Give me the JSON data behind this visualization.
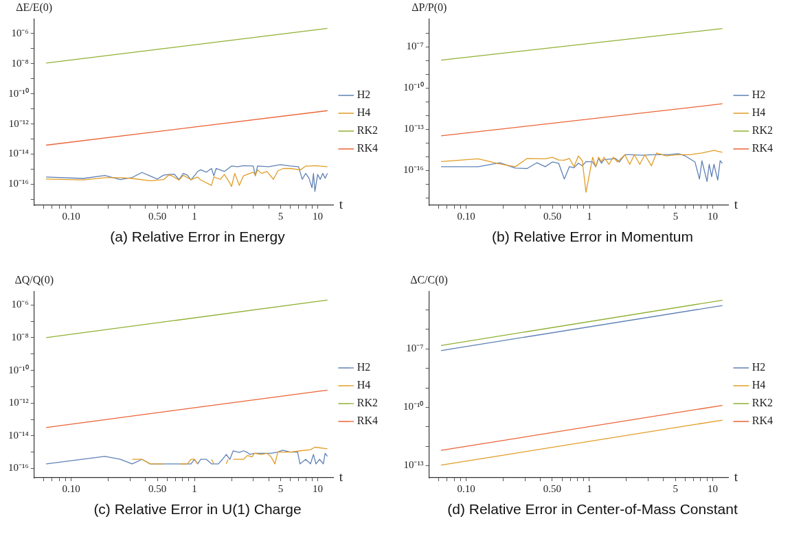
{
  "chart_data": [
    {
      "type": "line",
      "title": "(a) Relative Error in Energy",
      "xlabel": "t",
      "ylabel": "ΔE/E(0)",
      "log": "xy",
      "grid": false,
      "legend": "right",
      "marker": "none",
      "xlim": [
        0.05,
        13.5
      ],
      "xticks": [
        {
          "value": 0.06,
          "label": null
        },
        {
          "value": 0.07,
          "label": null
        },
        {
          "value": 0.08,
          "label": null
        },
        {
          "value": 0.09,
          "label": null
        },
        {
          "value": 0.1,
          "label": "0.10"
        },
        {
          "value": 0.2,
          "label": null
        },
        {
          "value": 0.3,
          "label": null
        },
        {
          "value": 0.4,
          "label": null
        },
        {
          "value": 0.5,
          "label": "0.50"
        },
        {
          "value": 0.6,
          "label": null
        },
        {
          "value": 0.7,
          "label": null
        },
        {
          "value": 0.8,
          "label": null
        },
        {
          "value": 0.9,
          "label": null
        },
        1,
        {
          "value": 2,
          "label": null
        },
        {
          "value": 3,
          "label": null
        },
        {
          "value": 4,
          "label": null
        },
        5,
        {
          "value": 6,
          "label": null
        },
        {
          "value": 7,
          "label": null
        },
        {
          "value": 8,
          "label": null
        },
        {
          "value": 9,
          "label": null
        },
        10
      ],
      "ylim": [
        4e-18,
        9e-06
      ],
      "yticks": [
        {
          "value": 1e-17,
          "label": null
        },
        {
          "value": 1e-16,
          "label": "10⁻¹⁶"
        },
        {
          "value": 1e-15,
          "label": null
        },
        {
          "value": 1e-14,
          "label": "10⁻¹⁴"
        },
        {
          "value": 1e-13,
          "label": null
        },
        {
          "value": 1e-12,
          "label": "10⁻¹²"
        },
        {
          "value": 1e-11,
          "label": null
        },
        {
          "value": 1e-10,
          "label": "10⁻¹⁰"
        },
        {
          "value": 1e-09,
          "label": null
        },
        {
          "value": 1e-08,
          "label": "10⁻⁸"
        },
        {
          "value": 1e-07,
          "label": null
        },
        {
          "value": 1e-06,
          "label": "10⁻⁶"
        }
      ],
      "series": [
        {
          "name": "H2",
          "color": "#5e81b5",
          "x": [
            0.0625,
            0.125,
            0.1875,
            0.25,
            0.3125,
            0.375,
            0.5,
            0.5625,
            0.625,
            0.6875,
            0.75,
            0.8125,
            0.875,
            0.9375,
            1.0625,
            1.125,
            1.25,
            1.375,
            1.4375,
            1.5,
            1.75,
            2,
            2.25,
            2.5,
            3,
            3.125,
            3.25,
            4,
            5,
            6,
            7,
            7.5,
            8,
            8.5,
            9,
            9.25,
            9.5,
            10,
            10.5,
            11,
            11.5,
            12
          ],
          "values": [
            3e-16,
            2.4e-16,
            3.8e-16,
            2e-16,
            2.8e-16,
            6e-16,
            2.2e-16,
            4e-16,
            4.4e-16,
            4.5e-16,
            2e-16,
            5.2e-16,
            4e-16,
            1.9e-16,
            7e-16,
            9e-16,
            6.3e-16,
            1.1e-15,
            3.6e-16,
            1.1e-15,
            7e-16,
            1.6e-15,
            1.45e-15,
            1.7e-15,
            1.6e-15,
            3.6e-16,
            1.6e-15,
            1.45e-15,
            2e-15,
            1.6e-15,
            1.45e-15,
            2.1e-16,
            5.2e-16,
            2.5e-16,
            5.8e-17,
            5.2e-16,
            3.3e-17,
            4.4e-16,
            2.1e-16,
            5.2e-16,
            2.5e-16,
            5.2e-16
          ]
        },
        {
          "name": "H4",
          "color": "#e19c24",
          "x": [
            0.0625,
            0.125,
            0.1875,
            0.25,
            0.3125,
            0.4375,
            0.5625,
            0.625,
            0.75,
            0.8125,
            0.9375,
            1.0625,
            1.125,
            1.375,
            1.4375,
            1.625,
            1.75,
            1.9375,
            2,
            2.125,
            2.3125,
            2.5,
            3,
            3.125,
            3.25,
            3.5,
            3.875,
            4.375,
            4.75,
            5.25,
            6,
            7.25,
            8,
            8.75,
            9.5,
            12
          ],
          "values": [
            2.2e-16,
            1.9e-16,
            2.7e-16,
            2.7e-16,
            2.4e-16,
            1.7e-16,
            2e-16,
            4.4e-16,
            1.9e-16,
            3.9e-16,
            2e-16,
            3e-16,
            1.9e-16,
            8.3e-17,
            3e-16,
            2.1e-16,
            4.4e-16,
            1.2e-16,
            7e-17,
            5.2e-16,
            8.3e-17,
            3.6e-16,
            6.3e-16,
            3.9e-16,
            9e-16,
            5.2e-16,
            7e-16,
            2.1e-16,
            7.6e-16,
            1.1e-15,
            1.1e-15,
            9e-16,
            1.6e-15,
            1.6e-15,
            1.7e-15,
            1.45e-15
          ]
        },
        {
          "name": "RK2",
          "color": "#8fb032",
          "x": [
            0.0625,
            12
          ],
          "values": [
            1.1e-08,
            2.2e-06
          ]
        },
        {
          "name": "RK4",
          "color": "#eb6235",
          "x": [
            0.0625,
            12
          ],
          "values": [
            3.9e-14,
            7.6e-12
          ]
        }
      ]
    },
    {
      "type": "line",
      "title": "(b) Relative Error in Momentum",
      "xlabel": "t",
      "ylabel": "ΔP/P(0)",
      "log": "xy",
      "grid": false,
      "legend": "right",
      "marker": "none",
      "xlim": [
        0.05,
        13.5
      ],
      "xticks": [
        {
          "value": 0.06,
          "label": null
        },
        {
          "value": 0.07,
          "label": null
        },
        {
          "value": 0.08,
          "label": null
        },
        {
          "value": 0.09,
          "label": null
        },
        {
          "value": 0.1,
          "label": "0.10"
        },
        {
          "value": 0.2,
          "label": null
        },
        {
          "value": 0.3,
          "label": null
        },
        {
          "value": 0.4,
          "label": null
        },
        {
          "value": 0.5,
          "label": "0.50"
        },
        {
          "value": 0.6,
          "label": null
        },
        {
          "value": 0.7,
          "label": null
        },
        {
          "value": 0.8,
          "label": null
        },
        {
          "value": 0.9,
          "label": null
        },
        1,
        {
          "value": 2,
          "label": null
        },
        {
          "value": 3,
          "label": null
        },
        {
          "value": 4,
          "label": null
        },
        5,
        {
          "value": 6,
          "label": null
        },
        {
          "value": 7,
          "label": null
        },
        {
          "value": 8,
          "label": null
        },
        {
          "value": 9,
          "label": null
        },
        10
      ],
      "ylim": [
        3e-19,
        1e-05
      ],
      "yticks": [
        {
          "value": 1e-18,
          "label": null
        },
        {
          "value": 1e-17,
          "label": null
        },
        {
          "value": 1e-16,
          "label": "10⁻¹⁶"
        },
        {
          "value": 1e-15,
          "label": null
        },
        {
          "value": 1e-14,
          "label": null
        },
        {
          "value": 1e-13,
          "label": "10⁻¹³"
        },
        {
          "value": 1e-12,
          "label": null
        },
        {
          "value": 1e-11,
          "label": null
        },
        {
          "value": 1e-10,
          "label": "10⁻¹⁰"
        },
        {
          "value": 1e-09,
          "label": null
        },
        {
          "value": 1e-08,
          "label": null
        },
        {
          "value": 1e-07,
          "label": "10⁻⁷"
        },
        {
          "value": 1e-06,
          "label": null
        }
      ],
      "series": [
        {
          "name": "H2",
          "color": "#5e81b5",
          "x": [
            0.0625,
            0.125,
            0.1875,
            0.25,
            0.3125,
            0.375,
            0.4375,
            0.5,
            0.5625,
            0.625,
            0.6875,
            0.75,
            0.8125,
            0.875,
            0.9375,
            1.0625,
            1.125,
            1.1875,
            1.25,
            1.3125,
            1.625,
            1.75,
            1.9375,
            2.125,
            2.6875,
            3.3125,
            4.375,
            5.25,
            6,
            7.1875,
            7.8125,
            8.1875,
            9,
            9.375,
            9.8125,
            10.25,
            11,
            11.5,
            12
          ],
          "values": [
            1.9e-16,
            1.9e-16,
            3.7e-16,
            1.5e-16,
            1.4e-16,
            3.7e-16,
            1.9e-16,
            4.2e-16,
            3.4e-16,
            2.4e-17,
            1.9e-16,
            1.6e-16,
            3.4e-16,
            2.2e-16,
            4.5e-16,
            4.2e-16,
            1.9e-16,
            7.6e-16,
            3.4e-16,
            6.2e-16,
            7.6e-16,
            4.2e-16,
            1.4e-15,
            1.4e-15,
            1.3e-15,
            1.4e-15,
            1.4e-15,
            1.7e-15,
            1.15e-15,
            4.2e-16,
            2.4e-17,
            5.1e-16,
            1.6e-17,
            2.8e-16,
            3.6e-17,
            2.8e-16,
            2e-17,
            5.1e-16,
            3.4e-16
          ]
        },
        {
          "name": "H4",
          "color": "#e19c24",
          "x": [
            0.0625,
            0.125,
            0.1875,
            0.25,
            0.3125,
            0.4375,
            0.5,
            0.5625,
            0.625,
            0.6875,
            0.75,
            0.8125,
            0.875,
            0.9375,
            1.0625,
            1.125,
            1.1875,
            1.25,
            1.3125,
            1.4375,
            1.5625,
            1.6875,
            1.9375,
            2.125,
            2.3125,
            2.5625,
            2.8125,
            3.1875,
            3.5,
            4.1875,
            5.25,
            6.5625,
            8.1875,
            10.25,
            12
          ],
          "values": [
            4.5e-16,
            7.1e-16,
            3e-16,
            1.9e-16,
            7.6e-16,
            7.1e-16,
            9.3e-16,
            5.8e-16,
            5.6e-16,
            7.6e-16,
            1.9e-16,
            1.15e-15,
            5.1e-16,
            2.6e-18,
            9.3e-16,
            1.9e-16,
            9.3e-16,
            4.5e-16,
            9.3e-16,
            2.8e-16,
            9.3e-16,
            4.2e-16,
            1.4e-15,
            2.8e-16,
            1.4e-15,
            2.8e-16,
            1.4e-15,
            2.2e-16,
            1.9e-15,
            1.15e-15,
            1.4e-15,
            1.4e-15,
            1.9e-15,
            2.9e-15,
            2.1e-15
          ]
        },
        {
          "name": "RK2",
          "color": "#8fb032",
          "x": [
            0.0625,
            12
          ],
          "values": [
            1.07e-08,
            2.1e-06
          ]
        },
        {
          "name": "RK4",
          "color": "#eb6235",
          "x": [
            0.0625,
            12
          ],
          "values": [
            3.3e-14,
            7.1e-12
          ]
        }
      ]
    },
    {
      "type": "line",
      "title": "(c) Relative Error in U(1) Charge",
      "xlabel": "t",
      "ylabel": "ΔQ/Q(0)",
      "log": "xy",
      "grid": false,
      "legend": "right",
      "marker": "none",
      "xlim": [
        0.05,
        13.5
      ],
      "xticks": [
        {
          "value": 0.06,
          "label": null
        },
        {
          "value": 0.07,
          "label": null
        },
        {
          "value": 0.08,
          "label": null
        },
        {
          "value": 0.09,
          "label": null
        },
        {
          "value": 0.1,
          "label": "0.10"
        },
        {
          "value": 0.2,
          "label": null
        },
        {
          "value": 0.3,
          "label": null
        },
        {
          "value": 0.4,
          "label": null
        },
        {
          "value": 0.5,
          "label": "0.50"
        },
        {
          "value": 0.6,
          "label": null
        },
        {
          "value": 0.7,
          "label": null
        },
        {
          "value": 0.8,
          "label": null
        },
        {
          "value": 0.9,
          "label": null
        },
        1,
        {
          "value": 2,
          "label": null
        },
        {
          "value": 3,
          "label": null
        },
        {
          "value": 4,
          "label": null
        },
        5,
        {
          "value": 6,
          "label": null
        },
        {
          "value": 7,
          "label": null
        },
        {
          "value": 8,
          "label": null
        },
        {
          "value": 9,
          "label": null
        },
        10
      ],
      "ylim": [
        2.7e-17,
        6.5e-06
      ],
      "yticks": [
        {
          "value": 1e-16,
          "label": "10⁻¹⁶"
        },
        {
          "value": 1e-15,
          "label": null
        },
        {
          "value": 1e-14,
          "label": "10⁻¹⁴"
        },
        {
          "value": 1e-13,
          "label": null
        },
        {
          "value": 1e-12,
          "label": "10⁻¹²"
        },
        {
          "value": 1e-11,
          "label": null
        },
        {
          "value": 1e-10,
          "label": "10⁻¹⁰"
        },
        {
          "value": 1e-09,
          "label": null
        },
        {
          "value": 1e-08,
          "label": "10⁻⁸"
        },
        {
          "value": 1e-07,
          "label": null
        },
        {
          "value": 1e-06,
          "label": "10⁻⁶"
        }
      ],
      "series": [
        {
          "name": "H2",
          "color": "#5e81b5",
          "x": [
            0.0625,
            0.1875,
            0.25,
            0.3125,
            0.375,
            0.4375,
            0.9375,
            1,
            1.0625,
            1.125,
            1.25,
            1.375,
            1.5625,
            1.6875,
            1.8125,
            1.9375,
            2.0625,
            2.3125,
            2.5,
            2.6875,
            2.8125,
            3.0625,
            3.5,
            4.1875,
            4.75,
            5.1875,
            6,
            6.875,
            7.1875,
            8,
            8.75,
            9.25,
            9.6875,
            10.375,
            11.125,
            11.5,
            12
          ],
          "values": [
            1.9e-16,
            5.5e-16,
            3.6e-16,
            1.9e-16,
            3.6e-16,
            1.9e-16,
            1.9e-16,
            3.6e-16,
            1.9e-16,
            3.6e-16,
            3.6e-16,
            1.9e-16,
            1.9e-16,
            3.6e-16,
            7.2e-16,
            3.6e-16,
            1.2e-15,
            9.5e-16,
            1.2e-15,
            9.5e-16,
            7.2e-16,
            8.5e-16,
            8.5e-16,
            8.5e-16,
            1e-15,
            1.3e-15,
            1e-15,
            1e-15,
            1.9e-16,
            3.6e-16,
            1.9e-16,
            7.2e-16,
            1.9e-16,
            3.6e-16,
            1.9e-16,
            8.5e-16,
            5.5e-16
          ]
        },
        {
          "name": "H4",
          "color": "#e19c24",
          "x": [
            0.3125,
            0.375,
            0.4375,
            0.5625,
            0.65,
            0.75,
            0.875,
            0.9375,
            1,
            1.0625,
            1.2,
            1.375,
            1.4375,
            1.6,
            1.8125,
            1.875,
            1.97,
            2.0625,
            2.125,
            2.5,
            2.6875,
            2.9375,
            3.0625,
            3.5,
            3.875,
            4.1875,
            4.5,
            4.75,
            6,
            7.25,
            8.75,
            9.5,
            12
          ],
          "values": [
            3.6e-16,
            3.6e-16,
            1.9e-16,
            1.9e-16,
            null,
            1.9e-16,
            1.9e-16,
            3.6e-16,
            3.6e-16,
            1.9e-16,
            null,
            3.6e-16,
            1.9e-16,
            null,
            1.9e-16,
            3.6e-16,
            null,
            3.6e-16,
            3.6e-16,
            3.6e-16,
            6.2e-16,
            5.1e-16,
            8.5e-16,
            7.2e-16,
            8.5e-16,
            5.1e-16,
            1.9e-16,
            1e-15,
            1e-15,
            1.2e-15,
            1.4e-15,
            2e-15,
            1.6e-15
          ]
        },
        {
          "name": "RK2",
          "color": "#8fb032",
          "x": [
            0.0625,
            12
          ],
          "values": [
            1e-08,
            2e-06
          ]
        },
        {
          "name": "RK4",
          "color": "#eb6235",
          "x": [
            0.0625,
            12
          ],
          "values": [
            3.2e-14,
            6.2e-12
          ]
        }
      ]
    },
    {
      "type": "line",
      "title": "(d) Relative Error in Center-of-Mass Constant",
      "xlabel": "t",
      "ylabel": "ΔC/C(0)",
      "log": "xy",
      "grid": false,
      "legend": "right",
      "marker": "none",
      "xlim": [
        0.05,
        13.5
      ],
      "xticks": [
        {
          "value": 0.06,
          "label": null
        },
        {
          "value": 0.07,
          "label": null
        },
        {
          "value": 0.08,
          "label": null
        },
        {
          "value": 0.09,
          "label": null
        },
        {
          "value": 0.1,
          "label": "0.10"
        },
        {
          "value": 0.2,
          "label": null
        },
        {
          "value": 0.3,
          "label": null
        },
        {
          "value": 0.4,
          "label": null
        },
        {
          "value": 0.5,
          "label": "0.50"
        },
        {
          "value": 0.6,
          "label": null
        },
        {
          "value": 0.7,
          "label": null
        },
        {
          "value": 0.8,
          "label": null
        },
        {
          "value": 0.9,
          "label": null
        },
        1,
        {
          "value": 2,
          "label": null
        },
        {
          "value": 3,
          "label": null
        },
        {
          "value": 4,
          "label": null
        },
        5,
        {
          "value": 6,
          "label": null
        },
        {
          "value": 7,
          "label": null
        },
        {
          "value": 8,
          "label": null
        },
        {
          "value": 9,
          "label": null
        },
        10
      ],
      "ylim": [
        2.4e-14,
        8.7e-05
      ],
      "yticks": [
        {
          "value": 1e-13,
          "label": "10⁻¹³"
        },
        {
          "value": 1e-12,
          "label": null
        },
        {
          "value": 1e-11,
          "label": null
        },
        {
          "value": 1e-10,
          "label": "10⁻¹⁰"
        },
        {
          "value": 1e-09,
          "label": null
        },
        {
          "value": 1e-08,
          "label": null
        },
        {
          "value": 1e-07,
          "label": "10⁻⁷"
        },
        {
          "value": 1e-06,
          "label": null
        },
        {
          "value": 1e-05,
          "label": null
        }
      ],
      "series": [
        {
          "name": "H2",
          "color": "#5e81b5",
          "x": [
            0.0625,
            12
          ],
          "values": [
            8.2e-08,
            1.7e-05
          ]
        },
        {
          "name": "H4",
          "color": "#e19c24",
          "x": [
            0.0625,
            12
          ],
          "values": [
            1.06e-13,
            2.2e-11
          ]
        },
        {
          "name": "RK2",
          "color": "#8fb032",
          "x": [
            0.0625,
            12
          ],
          "values": [
            1.5e-07,
            3.2e-05
          ]
        },
        {
          "name": "RK4",
          "color": "#eb6235",
          "x": [
            0.0625,
            12
          ],
          "values": [
            6.1e-13,
            1.26e-10
          ]
        }
      ]
    }
  ]
}
